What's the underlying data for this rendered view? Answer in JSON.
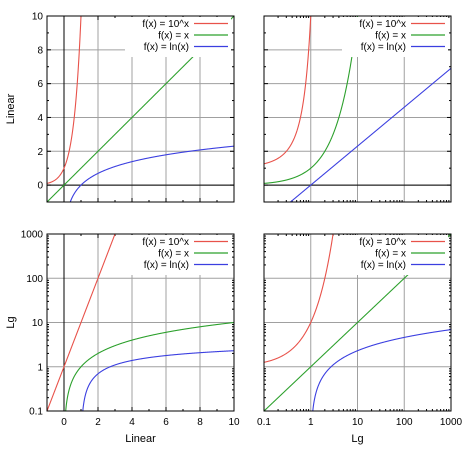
{
  "chart_data": {
    "type": "line",
    "layout": "2x2 grid",
    "functions": [
      {
        "name": "f(x) = 10^x",
        "color": "#e8524a",
        "expr": "10^x"
      },
      {
        "name": "f(x) = x",
        "color": "#2ca02c",
        "expr": "x"
      },
      {
        "name": "f(x) = ln(x)",
        "color": "#3b3fe0",
        "expr": "ln(x)"
      }
    ],
    "row_labels": [
      "Linear",
      "Lg"
    ],
    "column_labels": [
      "Linear",
      "Lg"
    ],
    "legend_placement": "top-right",
    "grid": true,
    "panels": [
      {
        "xscale": "linear",
        "yscale": "linear",
        "xlim": [
          -1,
          10
        ],
        "ylim": [
          -1,
          10
        ],
        "xticks": [],
        "yticks": [
          "0",
          "2",
          "4",
          "6",
          "8",
          "10"
        ],
        "ylabel": "Linear",
        "xlabel": ""
      },
      {
        "xscale": "log",
        "yscale": "linear",
        "xlim": [
          0.1,
          1000
        ],
        "ylim": [
          -1,
          10
        ],
        "xticks": [],
        "yticks": [],
        "ylabel": "",
        "xlabel": ""
      },
      {
        "xscale": "linear",
        "yscale": "log",
        "xlim": [
          -1,
          10
        ],
        "ylim": [
          0.1,
          1000
        ],
        "xticks": [
          "0",
          "2",
          "4",
          "6",
          "8",
          "10"
        ],
        "yticks": [
          "0.1",
          "1",
          "10",
          "100",
          "1000"
        ],
        "ylabel": "Lg",
        "xlabel": "Linear"
      },
      {
        "xscale": "log",
        "yscale": "log",
        "xlim": [
          0.1,
          1000
        ],
        "ylim": [
          0.1,
          1000
        ],
        "xticks": [
          "0.1",
          "1",
          "10",
          "100",
          "1000"
        ],
        "yticks": [],
        "ylabel": "",
        "xlabel": "Lg"
      }
    ]
  }
}
